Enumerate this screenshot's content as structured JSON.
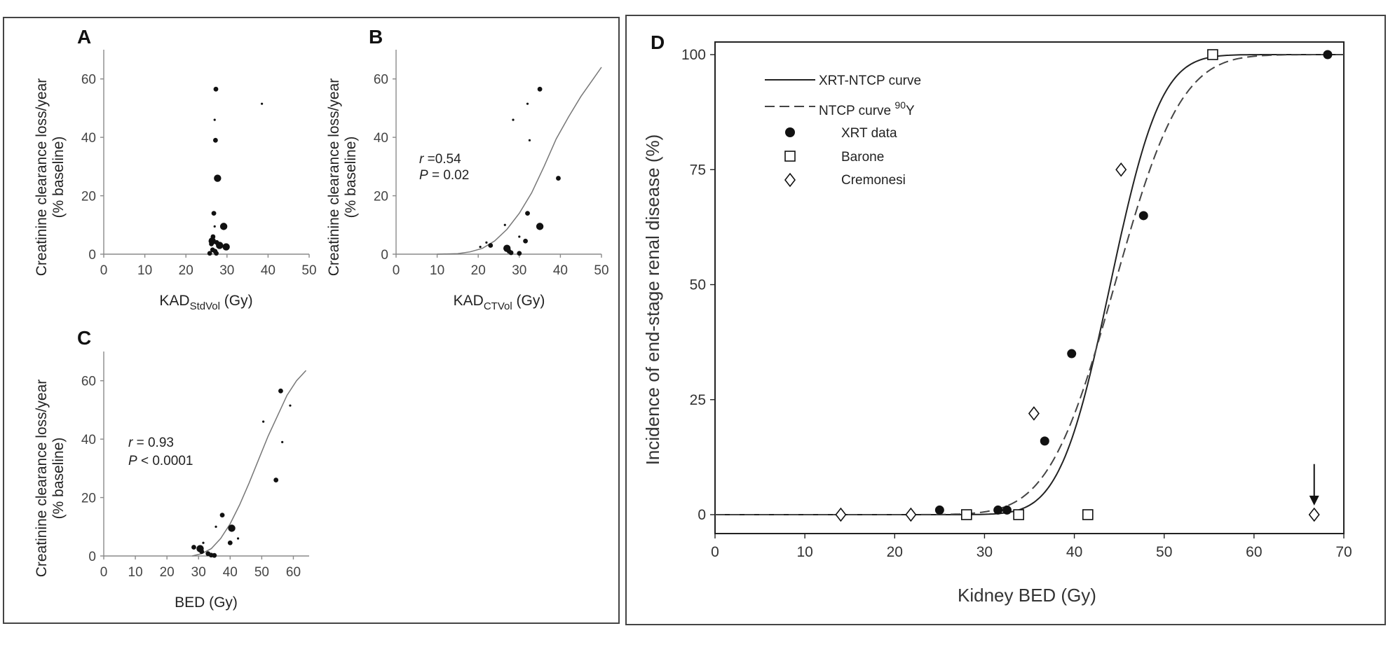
{
  "colors": {
    "ink": "#111111",
    "axis_gray": "#8a8a8a",
    "curve_gray": "#777777",
    "frame": "#444444"
  },
  "chart_data": [
    {
      "id": "A",
      "type": "scatter",
      "panel_label": "A",
      "xlabel_main": "KAD",
      "xlabel_sub": "StdVol",
      "xlabel_unit": " (Gy)",
      "ylabel_lines": [
        "Creatinine clearance loss/year",
        "(% baseline)"
      ],
      "xlim": [
        0,
        50
      ],
      "ylim": [
        0,
        70
      ],
      "xticks": [
        0,
        10,
        20,
        30,
        40,
        50
      ],
      "yticks": [
        0,
        20,
        40,
        60
      ],
      "points": [
        {
          "x": 27.3,
          "y": 56.5,
          "s": "m"
        },
        {
          "x": 27.0,
          "y": 46,
          "s": "s"
        },
        {
          "x": 38.5,
          "y": 51.5,
          "s": "s"
        },
        {
          "x": 27.2,
          "y": 39,
          "s": "m"
        },
        {
          "x": 27.7,
          "y": 26,
          "s": "l"
        },
        {
          "x": 26.8,
          "y": 14,
          "s": "m"
        },
        {
          "x": 29.2,
          "y": 9.5,
          "s": "l"
        },
        {
          "x": 27.0,
          "y": 9.5,
          "s": "s"
        },
        {
          "x": 26.6,
          "y": 6,
          "s": "m"
        },
        {
          "x": 26.4,
          "y": 4.5,
          "s": "l"
        },
        {
          "x": 27.5,
          "y": 4,
          "s": "m"
        },
        {
          "x": 26.2,
          "y": 3.5,
          "s": "m"
        },
        {
          "x": 28.2,
          "y": 3,
          "s": "l"
        },
        {
          "x": 29.8,
          "y": 2.5,
          "s": "l"
        },
        {
          "x": 26.5,
          "y": 1.5,
          "s": "m"
        },
        {
          "x": 27.1,
          "y": 1,
          "s": "m"
        },
        {
          "x": 25.8,
          "y": 0.3,
          "s": "m"
        },
        {
          "x": 27.4,
          "y": 0.3,
          "s": "m"
        }
      ]
    },
    {
      "id": "B",
      "type": "scatter",
      "panel_label": "B",
      "xlabel_main": "KAD",
      "xlabel_sub": "CTVol",
      "xlabel_unit": " (Gy)",
      "ylabel_lines": [
        "Creatinine clearance loss/year",
        "(% baseline)"
      ],
      "xlim": [
        0,
        50
      ],
      "ylim": [
        0,
        70
      ],
      "xticks": [
        0,
        10,
        20,
        30,
        40,
        50
      ],
      "yticks": [
        0,
        20,
        40,
        60
      ],
      "stats": {
        "r_label": "r",
        "r_text": " =0.54",
        "p_label": "P",
        "p_text": " = 0.02"
      },
      "points": [
        {
          "x": 35.0,
          "y": 56.5,
          "s": "m"
        },
        {
          "x": 32.0,
          "y": 51.5,
          "s": "s"
        },
        {
          "x": 28.5,
          "y": 46,
          "s": "s"
        },
        {
          "x": 32.5,
          "y": 39,
          "s": "s"
        },
        {
          "x": 39.5,
          "y": 26,
          "s": "m"
        },
        {
          "x": 32.0,
          "y": 14,
          "s": "m"
        },
        {
          "x": 26.5,
          "y": 10,
          "s": "s"
        },
        {
          "x": 35.0,
          "y": 9.5,
          "s": "l"
        },
        {
          "x": 30.0,
          "y": 6,
          "s": "s"
        },
        {
          "x": 22.0,
          "y": 4,
          "s": "s"
        },
        {
          "x": 31.5,
          "y": 4.5,
          "s": "m"
        },
        {
          "x": 23.0,
          "y": 3,
          "s": "m"
        },
        {
          "x": 20.5,
          "y": 2.5,
          "s": "s"
        },
        {
          "x": 27.0,
          "y": 2,
          "s": "l"
        },
        {
          "x": 27.5,
          "y": 1,
          "s": "m"
        },
        {
          "x": 28.0,
          "y": 0.5,
          "s": "m"
        },
        {
          "x": 30.0,
          "y": 0.3,
          "s": "m"
        }
      ],
      "fit": [
        [
          10,
          0.0
        ],
        [
          15,
          0.2
        ],
        [
          18,
          0.8
        ],
        [
          21,
          2.0
        ],
        [
          24,
          4.5
        ],
        [
          27,
          8.5
        ],
        [
          30,
          14
        ],
        [
          33,
          21
        ],
        [
          36,
          30
        ],
        [
          39,
          39.5
        ],
        [
          42,
          47
        ],
        [
          45,
          54
        ],
        [
          48,
          60
        ],
        [
          50,
          64
        ]
      ]
    },
    {
      "id": "C",
      "type": "scatter",
      "panel_label": "C",
      "xlabel_main": "BED (Gy)",
      "ylabel_lines": [
        "Creatinine clearance loss/year",
        "(% baseline)"
      ],
      "xlim": [
        0,
        65
      ],
      "ylim": [
        0,
        70
      ],
      "xticks": [
        0,
        10,
        20,
        30,
        40,
        50,
        60
      ],
      "yticks": [
        0,
        20,
        40,
        60
      ],
      "stats": {
        "r_label": "r",
        "r_text": " = 0.93",
        "p_label": "P",
        "p_text": " < 0.0001"
      },
      "points": [
        {
          "x": 56.0,
          "y": 56.5,
          "s": "m"
        },
        {
          "x": 59.0,
          "y": 51.5,
          "s": "s"
        },
        {
          "x": 50.5,
          "y": 46,
          "s": "s"
        },
        {
          "x": 56.5,
          "y": 39,
          "s": "s"
        },
        {
          "x": 54.5,
          "y": 26,
          "s": "m"
        },
        {
          "x": 37.5,
          "y": 14,
          "s": "m"
        },
        {
          "x": 35.5,
          "y": 10,
          "s": "s"
        },
        {
          "x": 40.5,
          "y": 9.5,
          "s": "l"
        },
        {
          "x": 42.5,
          "y": 6,
          "s": "s"
        },
        {
          "x": 40.0,
          "y": 4.5,
          "s": "m"
        },
        {
          "x": 31.5,
          "y": 4.5,
          "s": "s"
        },
        {
          "x": 28.5,
          "y": 3,
          "s": "m"
        },
        {
          "x": 30.5,
          "y": 2.5,
          "s": "l"
        },
        {
          "x": 31.0,
          "y": 1.5,
          "s": "m"
        },
        {
          "x": 33.0,
          "y": 0.8,
          "s": "m"
        },
        {
          "x": 34.0,
          "y": 0.3,
          "s": "m"
        },
        {
          "x": 35.0,
          "y": 0.2,
          "s": "m"
        }
      ],
      "fit": [
        [
          28,
          0.0
        ],
        [
          31,
          0.8
        ],
        [
          34,
          2.5
        ],
        [
          37,
          6
        ],
        [
          40,
          11
        ],
        [
          43,
          17.5
        ],
        [
          46,
          25
        ],
        [
          49,
          33
        ],
        [
          52,
          41
        ],
        [
          55,
          48
        ],
        [
          58,
          55
        ],
        [
          61,
          60
        ],
        [
          64,
          63.5
        ]
      ]
    },
    {
      "id": "D",
      "type": "line",
      "panel_label": "D",
      "xlabel": "Kidney BED (Gy)",
      "ylabel": "Incidence of end-stage renal disease (%)",
      "xlim": [
        0,
        70
      ],
      "ylim": [
        0,
        100
      ],
      "xticks": [
        0,
        10,
        20,
        30,
        40,
        50,
        60,
        70
      ],
      "yticks": [
        0,
        25,
        50,
        75,
        100
      ],
      "legend": {
        "xrt_ntcp_label": "XRT-NTCP curve",
        "ntcp_y90_label": "NTCP curve ",
        "ntcp_y90_sup": "90",
        "ntcp_y90_suffix": "Y",
        "xrt_data_label": "XRT data",
        "barone_label": "Barone",
        "cremonesi_label": "Cremonesi"
      },
      "series": [
        {
          "name": "XRT-NTCP curve",
          "style": "solid",
          "td50": 44.0,
          "m": 0.1
        },
        {
          "name": "NTCP curve 90Y",
          "style": "dashed",
          "td50": 44.5,
          "m": 0.13
        },
        {
          "name": "XRT data",
          "marker": "filled-circle",
          "x": [
            25,
            31.5,
            32.5,
            36.7,
            39.7,
            47.7,
            68.2
          ],
          "y": [
            1,
            1,
            1,
            16,
            35,
            65,
            100
          ]
        },
        {
          "name": "Barone",
          "marker": "open-square",
          "x": [
            28,
            33.8,
            41.5,
            55.4
          ],
          "y": [
            0,
            0,
            0,
            100
          ]
        },
        {
          "name": "Cremonesi",
          "marker": "open-diamond",
          "x": [
            14,
            21.8,
            35.5,
            45.2,
            66.7
          ],
          "y": [
            0,
            0,
            22,
            75,
            0
          ]
        }
      ],
      "annotation": {
        "type": "arrow-down",
        "x": 66.7,
        "y_from": 11,
        "y_to": 2
      }
    }
  ]
}
